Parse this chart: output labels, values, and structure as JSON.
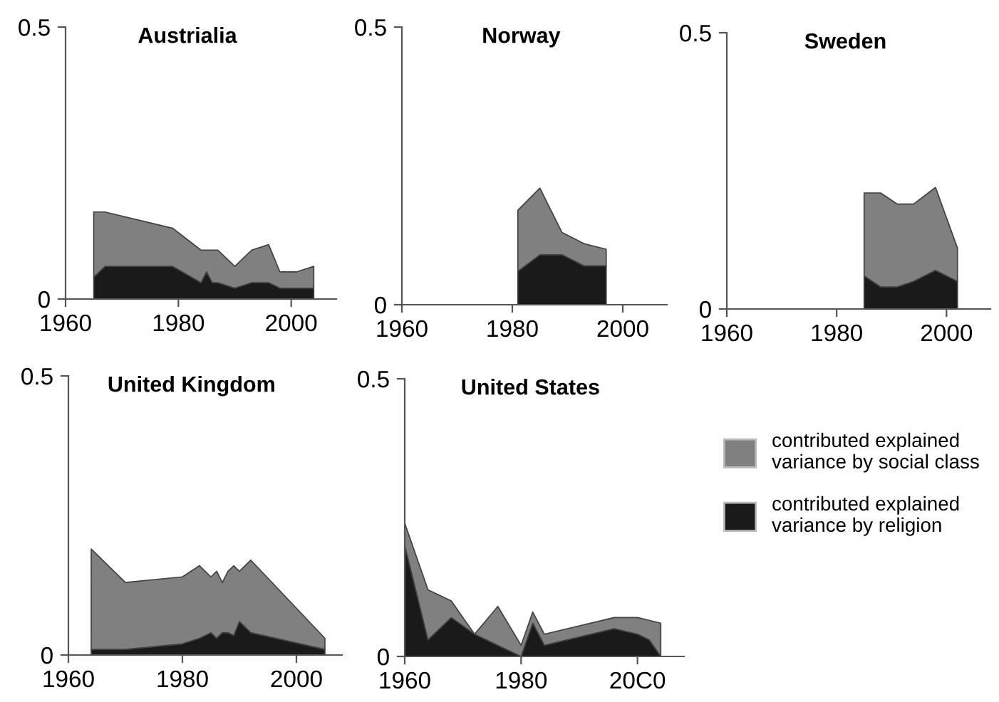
{
  "chart_data": [
    {
      "type": "area",
      "title": "Austrialia",
      "stacked": true,
      "x": [
        1965,
        1967,
        1979,
        1984,
        1985,
        1986,
        1987,
        1990,
        1993,
        1996,
        1998,
        2001,
        2004
      ],
      "xlim": [
        1960,
        2008
      ],
      "xticks": [
        1960,
        1980,
        2000
      ],
      "ylim": [
        0,
        0.5
      ],
      "yticks": [
        0,
        0.5
      ],
      "grid": false,
      "legend": false,
      "series": [
        {
          "color": "#1a1a1a",
          "values": [
            0.04,
            0.06,
            0.06,
            0.03,
            0.05,
            0.03,
            0.03,
            0.02,
            0.03,
            0.03,
            0.02,
            0.02,
            0.02
          ]
        },
        {
          "color": "#808080",
          "values": [
            0.12,
            0.1,
            0.07,
            0.06,
            0.04,
            0.06,
            0.06,
            0.04,
            0.06,
            0.07,
            0.03,
            0.03,
            0.04
          ]
        }
      ]
    },
    {
      "type": "area",
      "title": "Norway",
      "stacked": true,
      "x": [
        1981,
        1985,
        1989,
        1993,
        1997
      ],
      "xlim": [
        1960,
        2008
      ],
      "xticks": [
        1960,
        1980,
        2000
      ],
      "ylim": [
        0,
        0.5
      ],
      "yticks": [
        0,
        0.5
      ],
      "grid": false,
      "legend": false,
      "series": [
        {
          "color": "#1a1a1a",
          "values": [
            0.06,
            0.09,
            0.09,
            0.07,
            0.07
          ]
        },
        {
          "color": "#808080",
          "values": [
            0.11,
            0.12,
            0.04,
            0.04,
            0.03
          ]
        }
      ]
    },
    {
      "type": "area",
      "title": "Sweden",
      "stacked": true,
      "x": [
        1985,
        1988,
        1991,
        1994,
        1998,
        2002
      ],
      "xlim": [
        1960,
        2008
      ],
      "xticks": [
        1960,
        1980,
        2000
      ],
      "ylim": [
        0,
        0.5
      ],
      "yticks": [
        0,
        0.5
      ],
      "grid": false,
      "legend": false,
      "series": [
        {
          "color": "#1a1a1a",
          "values": [
            0.06,
            0.04,
            0.04,
            0.05,
            0.07,
            0.05
          ]
        },
        {
          "color": "#808080",
          "values": [
            0.15,
            0.17,
            0.15,
            0.14,
            0.15,
            0.06
          ]
        }
      ]
    },
    {
      "type": "area",
      "title": "United Kingdom",
      "stacked": true,
      "x": [
        1964,
        1970,
        1980,
        1983,
        1985,
        1986,
        1987,
        1988,
        1989,
        1990,
        1992,
        2005
      ],
      "xlim": [
        1960,
        2008
      ],
      "xticks": [
        1960,
        1980,
        2000
      ],
      "ylim": [
        0,
        0.5
      ],
      "yticks": [
        0,
        0.5
      ],
      "grid": false,
      "legend": false,
      "series": [
        {
          "color": "#1a1a1a",
          "values": [
            0.01,
            0.01,
            0.02,
            0.03,
            0.04,
            0.03,
            0.04,
            0.04,
            0.035,
            0.06,
            0.04,
            0.01
          ]
        },
        {
          "color": "#808080",
          "values": [
            0.18,
            0.12,
            0.12,
            0.13,
            0.1,
            0.12,
            0.09,
            0.11,
            0.125,
            0.09,
            0.13,
            0.02
          ]
        }
      ]
    },
    {
      "type": "area",
      "title": "United States",
      "stacked": true,
      "x": [
        1960,
        1964,
        1968,
        1972,
        1976,
        1980,
        1982,
        1984,
        1996,
        2000,
        2002,
        2004
      ],
      "xlim": [
        1960,
        2008
      ],
      "xticks": [
        1960,
        1980,
        {
          "value": 2000,
          "label": "20C0"
        }
      ],
      "ylim": [
        0,
        0.5
      ],
      "yticks": [
        0,
        0.5
      ],
      "grid": false,
      "legend": "right",
      "series": [
        {
          "name": "contributed explained variance by religion",
          "color": "#1a1a1a",
          "values": [
            0.2,
            0.03,
            0.07,
            0.04,
            0.02,
            0.0,
            0.06,
            0.02,
            0.05,
            0.04,
            0.03,
            0.0
          ]
        },
        {
          "name": "contributed explained variance by social class",
          "color": "#808080",
          "values": [
            0.04,
            0.09,
            0.03,
            0.0,
            0.07,
            0.02,
            0.02,
            0.02,
            0.02,
            0.03,
            0.035,
            0.06
          ]
        }
      ]
    }
  ]
}
